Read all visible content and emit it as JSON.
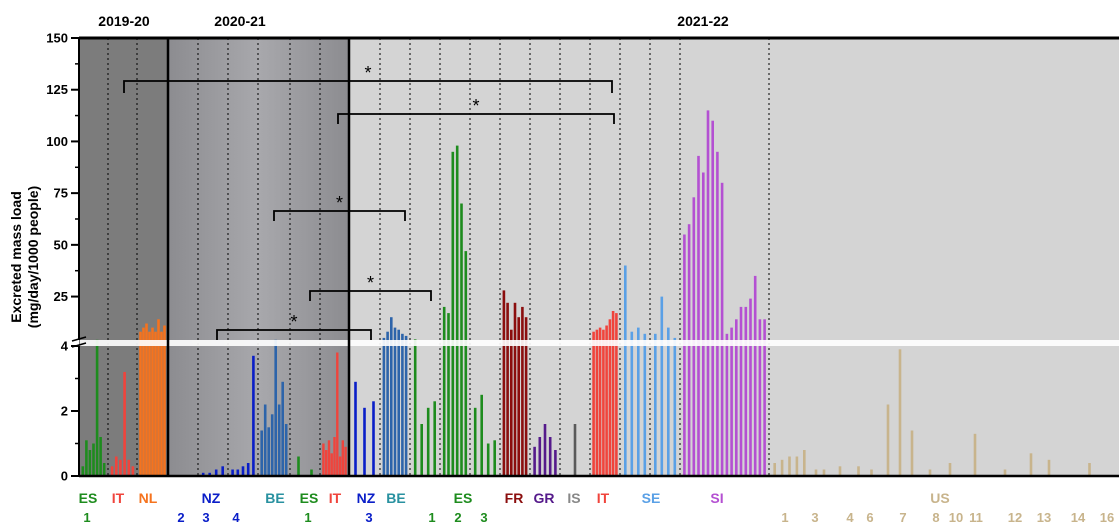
{
  "chart_data": {
    "type": "bar",
    "ylabel_line1": "Excreted mass load",
    "ylabel_line2": "(mg/day/1000 people)",
    "y_upper_range": [
      4,
      150
    ],
    "y_lower_range": [
      0,
      4
    ],
    "y_upper_ticks": [
      "25",
      "50",
      "75",
      "100",
      "125",
      "150"
    ],
    "y_lower_ticks": [
      "0",
      "2",
      "4"
    ],
    "periods": [
      {
        "label": "2019-20",
        "range": [
          0,
          3
        ]
      },
      {
        "label": "2020-21",
        "range": [
          3,
          9
        ]
      },
      {
        "label": "2021-22",
        "range": [
          9,
          38
        ]
      }
    ],
    "significance_marker": "*",
    "sites": [
      {
        "country": "ES",
        "site": "1",
        "color": "#1e8c1e",
        "values": [
          0.3,
          1.1,
          0.8,
          1.0,
          4.1,
          1.2,
          0.4
        ]
      },
      {
        "country": "IT",
        "site": "",
        "color": "#f0443c",
        "values": [
          0.3,
          0.6,
          0.5,
          3.2,
          0.5,
          0.3
        ]
      },
      {
        "country": "NL",
        "site": "",
        "color": "#f5731e",
        "values": [
          8,
          10,
          12,
          8,
          10,
          8,
          14,
          8,
          11
        ]
      },
      {
        "country": "NZ",
        "site": "2",
        "color": "#0a1ec8",
        "values": [
          0,
          0,
          0,
          0,
          0
        ]
      },
      {
        "country": "",
        "site": "3",
        "color": "#0a1ec8",
        "values": [
          0.1,
          0.1,
          0.2,
          0.3
        ]
      },
      {
        "country": "",
        "site": "4",
        "color": "#0a1ec8",
        "values": [
          0.2,
          0.2,
          0.3,
          0.4,
          3.7
        ]
      },
      {
        "country": "BE",
        "site": "",
        "color": "#2d64aa",
        "values": [
          1.4,
          2.2,
          1.5,
          1.9,
          4.1,
          2.2,
          2.9,
          1.6
        ]
      },
      {
        "country": "ES",
        "site": "1",
        "color": "#1e8c1e",
        "values": [
          0.6,
          0.2
        ]
      },
      {
        "country": "IT",
        "site": "",
        "color": "#f0443c",
        "values": [
          1.0,
          0.8,
          1.1,
          0.7,
          1.2,
          3.8,
          0.6,
          1.1,
          0.9
        ]
      },
      {
        "country": "NZ",
        "site": "3",
        "color": "#0a1ec8",
        "values": [
          2.9,
          2.1,
          2.3
        ]
      },
      {
        "country": "BE",
        "site": "",
        "color": "#2d64aa",
        "values": [
          5,
          8,
          15,
          10,
          9,
          7,
          6
        ]
      },
      {
        "country": "",
        "site": "1",
        "color": "#1e8c1e",
        "values": [
          4.3,
          1.6,
          2.1,
          2.3
        ]
      },
      {
        "country": "ES",
        "site": "2",
        "color": "#1e8c1e",
        "values": [
          20,
          17,
          95,
          98,
          70,
          47
        ]
      },
      {
        "country": "",
        "site": "3",
        "color": "#1e8c1e",
        "values": [
          2.1,
          2.5,
          1.0,
          1.1
        ]
      },
      {
        "country": "FR",
        "site": "",
        "color": "#8b0e0e",
        "values": [
          28,
          22,
          9,
          22,
          15,
          20,
          15
        ]
      },
      {
        "country": "GR",
        "site": "",
        "color": "#551a8b",
        "values": [
          0.9,
          1.2,
          1.6,
          1.2,
          0.8
        ]
      },
      {
        "country": "IS",
        "site": "",
        "color": "#5a5a5a",
        "values": [
          1.6
        ]
      },
      {
        "country": "IT",
        "site": "",
        "color": "#f0443c",
        "values": [
          8,
          9,
          10,
          9,
          11,
          14,
          18,
          17
        ]
      },
      {
        "country": "SE",
        "site": "",
        "color": "#5aa0e6",
        "values": [
          40,
          8,
          10,
          7
        ]
      },
      {
        "country": "",
        "site": "",
        "color": "#5aa0e6",
        "values": [
          7,
          25,
          10,
          5
        ]
      },
      {
        "country": "SI",
        "site": "",
        "color": "#b450d2",
        "values": [
          55,
          60,
          73,
          93,
          85,
          115,
          110,
          95,
          80,
          7,
          10,
          14,
          20,
          20,
          24,
          35,
          14,
          14
        ]
      },
      {
        "country": "US",
        "site": "1",
        "color": "#c8b48c",
        "values": [
          0.4,
          0.5,
          0.6,
          0.6,
          0.8
        ]
      },
      {
        "country": "",
        "site": "3",
        "color": "#c8b48c",
        "values": [
          0.2,
          0.2
        ]
      },
      {
        "country": "",
        "site": "4",
        "color": "#c8b48c",
        "values": [
          0.3
        ]
      },
      {
        "country": "",
        "site": "6",
        "color": "#c8b48c",
        "values": [
          0.3,
          0.2
        ]
      },
      {
        "country": "",
        "site": "7",
        "color": "#c8b48c",
        "values": [
          2.2,
          3.9,
          1.4
        ]
      },
      {
        "country": "",
        "site": "8",
        "color": "#c8b48c",
        "values": [
          0.2
        ]
      },
      {
        "country": "",
        "site": "10",
        "color": "#c8b48c",
        "values": [
          0.4
        ]
      },
      {
        "country": "",
        "site": "11",
        "color": "#c8b48c",
        "values": [
          1.3
        ]
      },
      {
        "country": "",
        "site": "12",
        "color": "#c8b48c",
        "values": [
          0.2
        ]
      },
      {
        "country": "",
        "site": "13",
        "color": "#c8b48c",
        "values": [
          0.7,
          0.5
        ]
      },
      {
        "country": "",
        "site": "14",
        "color": "#c8b48c",
        "values": [
          0.4
        ]
      },
      {
        "country": "",
        "site": "16",
        "color": "#c8b48c",
        "values": [
          0.3,
          0.3
        ]
      }
    ],
    "significance_brackets": [
      {
        "from_site": 1,
        "to_site": 17
      },
      {
        "from_site": 9,
        "to_site": 17
      },
      {
        "from_site": 6,
        "to_site": 10
      },
      {
        "from_site": 8,
        "to_site": 12
      },
      {
        "from_site": 3,
        "to_site": 9
      }
    ],
    "country_labels": [
      {
        "text": "ES",
        "color": "#1e8c1e"
      },
      {
        "text": "IT",
        "color": "#f0443c"
      },
      {
        "text": "NL",
        "color": "#f5731e"
      },
      {
        "text": "NZ",
        "color": "#0a1ec8"
      },
      {
        "text": "BE",
        "color": "#2891a0"
      },
      {
        "text": "ES",
        "color": "#1e8c1e"
      },
      {
        "text": "IT",
        "color": "#f0443c"
      },
      {
        "text": "NZ",
        "color": "#0a1ec8"
      },
      {
        "text": "BE",
        "color": "#2891a0"
      },
      {
        "text": "ES",
        "color": "#1e8c1e"
      },
      {
        "text": "FR",
        "color": "#8b0e0e"
      },
      {
        "text": "GR",
        "color": "#551a8b"
      },
      {
        "text": "IS",
        "color": "#888888"
      },
      {
        "text": "IT",
        "color": "#f0443c"
      },
      {
        "text": "SE",
        "color": "#5aa0e6"
      },
      {
        "text": "SI",
        "color": "#b450d2"
      },
      {
        "text": "US",
        "color": "#c8b48c"
      }
    ],
    "number_labels": [
      {
        "text": "1",
        "color": "#1e8c1e"
      },
      {
        "text": "2",
        "color": "#0a1ec8"
      },
      {
        "text": "3",
        "color": "#0a1ec8"
      },
      {
        "text": "4",
        "color": "#0a1ec8"
      },
      {
        "text": "1",
        "color": "#1e8c1e"
      },
      {
        "text": "3",
        "color": "#0a1ec8"
      },
      {
        "text": "1",
        "color": "#1e8c1e"
      },
      {
        "text": "2",
        "color": "#1e8c1e"
      },
      {
        "text": "3",
        "color": "#1e8c1e"
      },
      {
        "text": "1",
        "color": "#c8b48c"
      },
      {
        "text": "3",
        "color": "#c8b48c"
      },
      {
        "text": "4",
        "color": "#c8b48c"
      },
      {
        "text": "6",
        "color": "#c8b48c"
      },
      {
        "text": "7",
        "color": "#c8b48c"
      },
      {
        "text": "8",
        "color": "#c8b48c"
      },
      {
        "text": "10",
        "color": "#c8b48c"
      },
      {
        "text": "11",
        "color": "#c8b48c"
      },
      {
        "text": "12",
        "color": "#c8b48c"
      },
      {
        "text": "13",
        "color": "#c8b48c"
      },
      {
        "text": "14",
        "color": "#c8b48c"
      },
      {
        "text": "16",
        "color": "#c8b48c"
      }
    ]
  }
}
